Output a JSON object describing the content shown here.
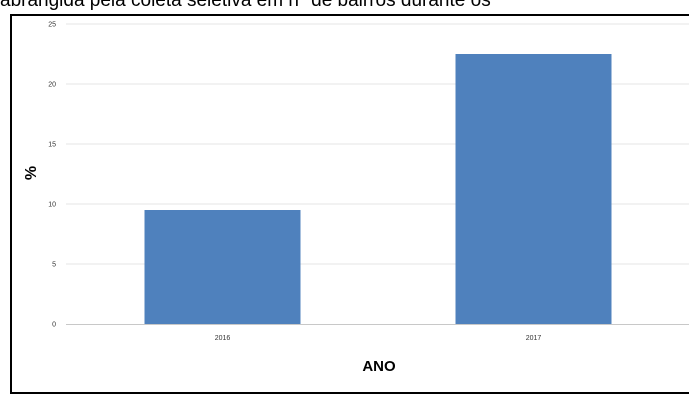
{
  "header": {
    "caption": "abrangida pela coleta seletiva em nº de bairros durante os"
  },
  "chart_data": {
    "type": "bar",
    "categories": [
      "2016",
      "2017"
    ],
    "values": [
      9.5,
      22.5
    ],
    "ylim": [
      0,
      25
    ],
    "yticks": [
      0,
      5,
      10,
      15,
      20,
      25
    ],
    "xlabel": "ANO",
    "ylabel": "%",
    "grid": true,
    "colors": {
      "bar": "#4f81bd",
      "grid": "#e4e4e4"
    }
  }
}
